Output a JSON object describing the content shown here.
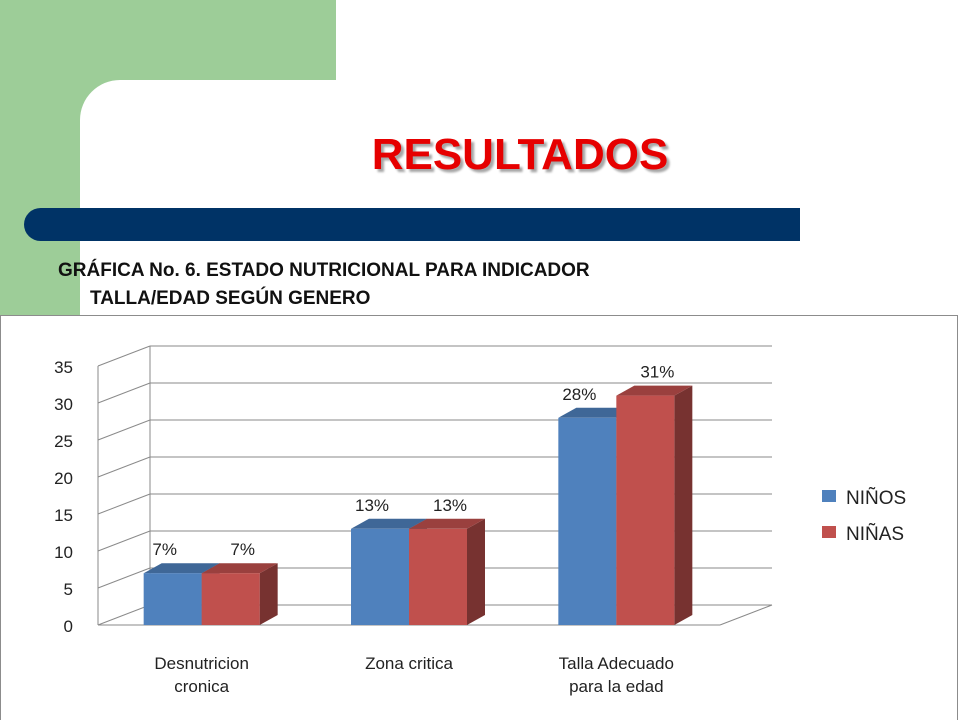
{
  "slide": {
    "title": "RESULTADOS",
    "subtitle_line1": "GRÁFICA No. 6. ESTADO NUTRICIONAL PARA INDICADOR",
    "subtitle_line2": "TALLA/EDAD SEGÚN GENERO"
  },
  "colors": {
    "background_green": "#9dcd98",
    "title_red": "#e60000",
    "bar_navy": "#003366"
  },
  "chart_data": {
    "type": "bar",
    "title": "GRÁFICA No. 6. ESTADO NUTRICIONAL PARA INDICADOR TALLA/EDAD SEGÚN GENERO",
    "categories": [
      [
        "Desnutricion",
        "cronica"
      ],
      [
        "Zona critica"
      ],
      [
        "Talla Adecuado",
        "para la edad"
      ]
    ],
    "series": [
      {
        "name": "NIÑOS",
        "color": "#4f81bd",
        "values": [
          7,
          13,
          28
        ],
        "labels": [
          "7%",
          "13%",
          "28%"
        ]
      },
      {
        "name": "NIÑAS",
        "color": "#c0504d",
        "values": [
          7,
          13,
          31
        ],
        "labels": [
          "7%",
          "13%",
          "31%"
        ]
      }
    ],
    "y_ticks": [
      0,
      5,
      10,
      15,
      20,
      25,
      30,
      35
    ],
    "ylim": [
      0,
      35
    ],
    "grid": true,
    "legend_position": "right",
    "xlabel": "",
    "ylabel": ""
  }
}
